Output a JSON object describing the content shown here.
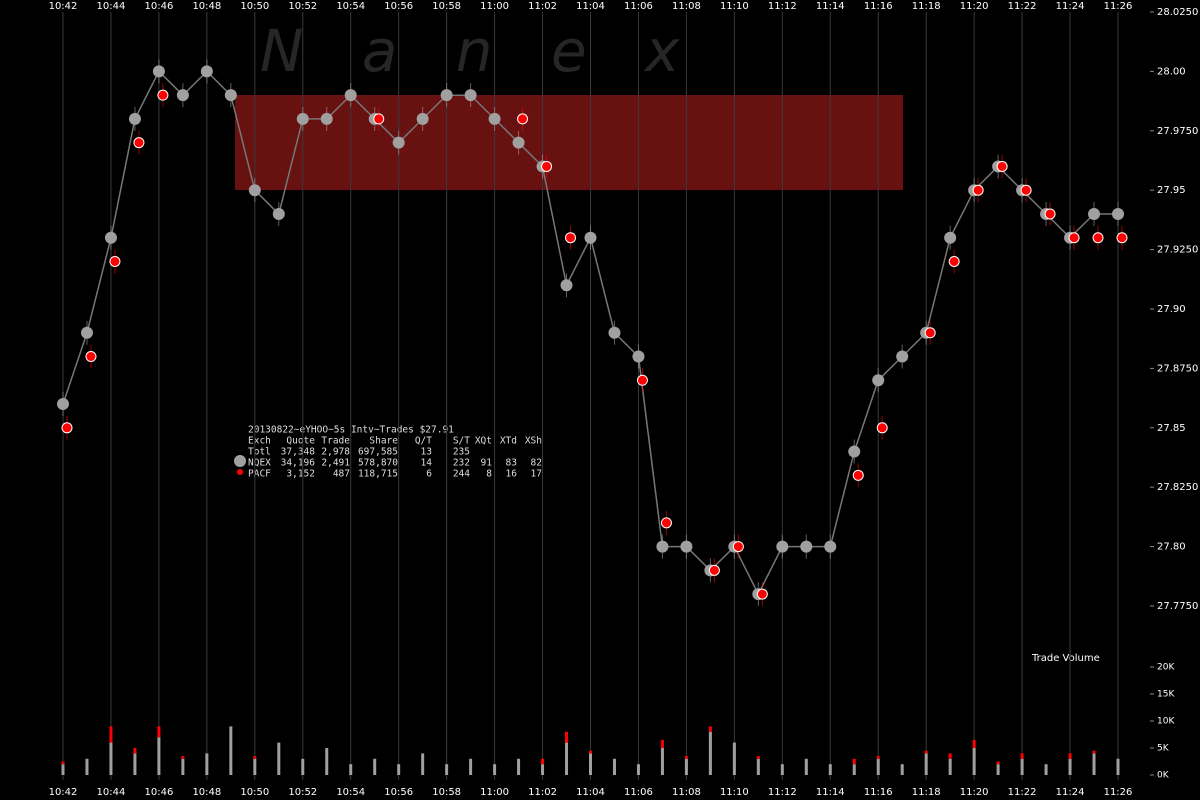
{
  "watermark": "N a n e x",
  "legend_table": {
    "title": "20130822~eYHOO~5s Intv~Trades $27.91",
    "header": [
      "Exch",
      "Quote",
      "Trade",
      "Share",
      "Q/T",
      "S/T",
      "XQt",
      "XTd",
      "XSh"
    ],
    "total": [
      "Totl",
      "37,348",
      "2,978",
      "697,585",
      "13",
      "235"
    ],
    "rows": [
      [
        "34,196",
        "2,491",
        "578,870",
        "14",
        "232",
        "91",
        "83",
        "82"
      ],
      [
        "3,152",
        "487",
        "118,715",
        "6",
        "244",
        "8",
        "16",
        "17"
      ]
    ]
  },
  "chart_data": [
    {
      "type": "line",
      "categories": [
        "10:42",
        null,
        "10:44",
        null,
        "10:46",
        null,
        "10:48",
        null,
        "10:50",
        null,
        "10:52",
        null,
        "10:54",
        null,
        "10:56",
        null,
        "10:58",
        null,
        "11:00",
        null,
        "11:02",
        null,
        "11:04",
        null,
        "11:06",
        null,
        "11:08",
        null,
        "11:10",
        null,
        "11:12",
        null,
        "11:14",
        null,
        "11:16",
        null,
        "11:18",
        null,
        "11:20",
        null,
        "11:22",
        null,
        "11:24",
        null,
        "11:26"
      ],
      "series": [
        {
          "name": "NQEX",
          "color": "#a0a0a0",
          "values": [
            27.86,
            27.89,
            27.93,
            27.98,
            28.0,
            27.99,
            28.0,
            27.99,
            27.95,
            27.94,
            27.98,
            27.98,
            27.99,
            27.98,
            27.97,
            27.98,
            27.99,
            27.99,
            27.98,
            27.97,
            27.96,
            27.91,
            27.93,
            27.89,
            27.88,
            27.8,
            27.8,
            27.79,
            27.8,
            27.78,
            27.8,
            27.8,
            27.8,
            27.84,
            27.87,
            27.88,
            27.89,
            27.93,
            27.95,
            27.96,
            27.95,
            27.94,
            27.93,
            27.94,
            27.94
          ]
        },
        {
          "name": "PACF",
          "color": "#ff0000",
          "values": [
            27.85,
            27.88,
            27.92,
            27.97,
            27.99,
            null,
            null,
            null,
            null,
            null,
            null,
            null,
            null,
            27.98,
            null,
            null,
            null,
            null,
            null,
            27.98,
            27.96,
            27.93,
            null,
            null,
            27.87,
            27.81,
            null,
            27.79,
            27.8,
            27.78,
            null,
            null,
            null,
            27.83,
            27.85,
            null,
            27.89,
            27.92,
            27.95,
            27.96,
            27.95,
            27.94,
            27.93,
            27.93,
            27.93
          ]
        }
      ],
      "ylim": [
        27.775,
        28.025
      ],
      "yticks": [
        {
          "value": 28.025,
          "label": "28.0250"
        },
        {
          "value": 28.0,
          "label": "28.00"
        },
        {
          "value": 27.975,
          "label": "27.9750"
        },
        {
          "value": 27.95,
          "label": "27.95"
        },
        {
          "value": 27.925,
          "label": "27.9250"
        },
        {
          "value": 27.9,
          "label": "27.90"
        },
        {
          "value": 27.875,
          "label": "27.8750"
        },
        {
          "value": 27.85,
          "label": "27.85"
        },
        {
          "value": 27.825,
          "label": "27.8250"
        },
        {
          "value": 27.8,
          "label": "27.80"
        },
        {
          "value": 27.775,
          "label": "27.7750"
        }
      ],
      "grid": true
    },
    {
      "type": "bar",
      "title": "Trade Volume",
      "stacked": true,
      "categories": [
        "10:42",
        null,
        "10:44",
        null,
        "10:46",
        null,
        "10:48",
        null,
        "10:50",
        null,
        "10:52",
        null,
        "10:54",
        null,
        "10:56",
        null,
        "10:58",
        null,
        "11:00",
        null,
        "11:02",
        null,
        "11:04",
        null,
        "11:06",
        null,
        "11:08",
        null,
        "11:10",
        null,
        "11:12",
        null,
        "11:14",
        null,
        "11:16",
        null,
        "11:18",
        null,
        "11:20",
        null,
        "11:22",
        null,
        "11:24",
        null,
        "11:26"
      ],
      "series": [
        {
          "name": "NQEX",
          "color": "#a0a0a0",
          "values": [
            2000,
            3000,
            6000,
            4000,
            7000,
            3000,
            4000,
            9000,
            3000,
            6000,
            3000,
            5000,
            2000,
            3000,
            2000,
            4000,
            2000,
            3000,
            2000,
            3000,
            2000,
            6000,
            4000,
            3000,
            2000,
            5000,
            3000,
            8000,
            6000,
            3000,
            2000,
            3000,
            2000,
            2000,
            3000,
            2000,
            4000,
            3000,
            5000,
            2000,
            3000,
            2000,
            3000,
            4000,
            3000
          ]
        },
        {
          "name": "PACF",
          "color": "#ff0000",
          "values": [
            500,
            0,
            3000,
            1000,
            2000,
            500,
            0,
            0,
            500,
            0,
            0,
            0,
            0,
            0,
            0,
            0,
            0,
            0,
            0,
            0,
            1000,
            2000,
            500,
            0,
            0,
            1500,
            500,
            1000,
            0,
            500,
            0,
            0,
            0,
            1000,
            500,
            0,
            500,
            1000,
            1500,
            500,
            1000,
            0,
            1000,
            500,
            0
          ]
        }
      ],
      "ylim": [
        0,
        20000
      ],
      "yticks": [
        {
          "value": 20000,
          "label": "20K"
        },
        {
          "value": 15000,
          "label": "15K"
        },
        {
          "value": 10000,
          "label": "10K"
        },
        {
          "value": 5000,
          "label": "5K"
        },
        {
          "value": 0,
          "label": "0K"
        }
      ]
    }
  ]
}
